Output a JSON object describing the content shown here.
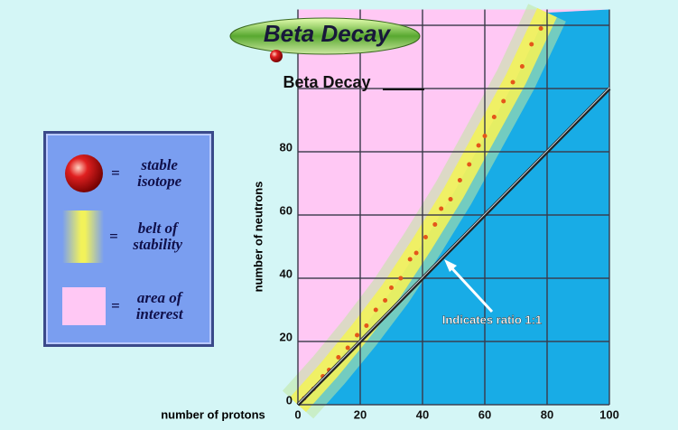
{
  "chart_data": {
    "type": "scatter",
    "title": "Beta Decay",
    "subtitle": "Beta Decay",
    "x_label": "number of protons",
    "y_label": "number of neutrons",
    "xlim": [
      0,
      100
    ],
    "ylim": [
      0,
      125
    ],
    "xticks": [
      0,
      20,
      40,
      60,
      80,
      100
    ],
    "yticks": [
      0,
      20,
      40,
      60,
      80
    ],
    "ygrid": [
      100,
      120
    ],
    "plot_color": "#18ace6",
    "series": [
      {
        "name": "stable isotope",
        "color": "#e4561a",
        "x": [
          2,
          5,
          8,
          10,
          13,
          16,
          19,
          22,
          25,
          28,
          30,
          33,
          36,
          38,
          41,
          44,
          46,
          49,
          52,
          55,
          58,
          60,
          63,
          66,
          69,
          72,
          75,
          78
        ],
        "y": [
          2,
          5,
          9,
          11,
          15,
          18,
          22,
          25,
          30,
          33,
          37,
          40,
          46,
          48,
          53,
          57,
          62,
          65,
          71,
          76,
          82,
          85,
          91,
          96,
          102,
          107,
          114,
          119
        ]
      },
      {
        "name": "belt of stability",
        "color": "#f2f25a",
        "x": [
          0,
          10,
          20,
          30,
          40,
          50,
          60,
          70,
          80
        ],
        "y": [
          0,
          11,
          23,
          36,
          51,
          67,
          85,
          103,
          124
        ]
      },
      {
        "name": "area of interest",
        "color": "#ffc8f4"
      }
    ],
    "ratio_line": {
      "x": [
        0,
        100
      ],
      "y": [
        0,
        100
      ],
      "color": "#222222"
    },
    "annotation": "Indicates ratio 1:1"
  }
}
